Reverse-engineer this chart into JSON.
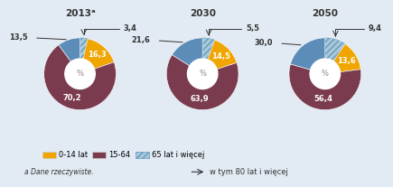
{
  "charts": [
    {
      "title": "2013ᵃ",
      "v_orange": 16.3,
      "v_brown": 70.2,
      "v_blue": 13.5,
      "v_hatch": 3.4,
      "lbl_orange": "16,3",
      "lbl_brown": "70,2",
      "lbl_blue": "13,5",
      "lbl_hatch": "3,4"
    },
    {
      "title": "2030",
      "v_orange": 14.5,
      "v_brown": 63.9,
      "v_blue": 21.6,
      "v_hatch": 5.5,
      "lbl_orange": "14,5",
      "lbl_brown": "63,9",
      "lbl_blue": "21,6",
      "lbl_hatch": "5,5"
    },
    {
      "title": "2050",
      "v_orange": 13.6,
      "v_brown": 56.4,
      "v_blue": 30.0,
      "v_hatch": 9.4,
      "lbl_orange": "13,6",
      "lbl_brown": "56,4",
      "lbl_blue": "30,0",
      "lbl_hatch": "9,4"
    }
  ],
  "col_orange": "#F0A500",
  "col_brown": "#7B3B4E",
  "col_blue": "#5B8DB8",
  "col_hatch_bg": "#A8C8DC",
  "col_hatch_line": "#6699BB",
  "bg": "#E2EBF3",
  "text_dark": "#333333",
  "text_white": "#ffffff",
  "legend_labels": [
    "0-14 lat",
    "15-64",
    "65 lat i więcej"
  ],
  "arrow_label": "w tym 80 lat i więcej",
  "footnote": "a Dane rzeczywiste."
}
